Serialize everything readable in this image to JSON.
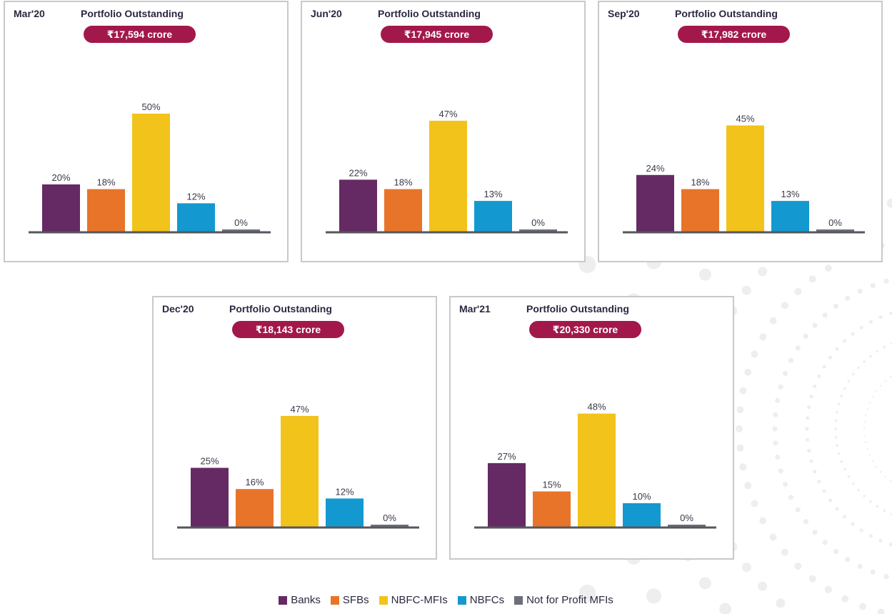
{
  "colors": {
    "Banks": "#652a63",
    "SFBs": "#e8742a",
    "NBFC-MFIs": "#f2c31b",
    "NBFCs": "#1399cf",
    "Not for Profit MFIs": "#6b6f78",
    "pill": "#a3184b",
    "baseline": "#55575d"
  },
  "legend": [
    {
      "label": "Banks"
    },
    {
      "label": "SFBs"
    },
    {
      "label": "NBFC-MFIs"
    },
    {
      "label": "NBFCs"
    },
    {
      "label": "Not for Profit MFIs"
    }
  ],
  "chart_data": [
    {
      "type": "bar",
      "period": "Mar'20",
      "title": "Portfolio Outstanding",
      "badge": "₹17,594 crore",
      "categories": [
        "Banks",
        "SFBs",
        "NBFC-MFIs",
        "NBFCs",
        "Not for Profit MFIs"
      ],
      "values": [
        20,
        18,
        50,
        12,
        0
      ],
      "labels": [
        "20%",
        "18%",
        "50%",
        "12%",
        "0%"
      ]
    },
    {
      "type": "bar",
      "period": "Jun'20",
      "title": "Portfolio Outstanding",
      "badge": "₹17,945 crore",
      "categories": [
        "Banks",
        "SFBs",
        "NBFC-MFIs",
        "NBFCs",
        "Not for Profit MFIs"
      ],
      "values": [
        22,
        18,
        47,
        13,
        0
      ],
      "labels": [
        "22%",
        "18%",
        "47%",
        "13%",
        "0%"
      ]
    },
    {
      "type": "bar",
      "period": "Sep'20",
      "title": "Portfolio Outstanding",
      "badge": "₹17,982 crore",
      "categories": [
        "Banks",
        "SFBs",
        "NBFC-MFIs",
        "NBFCs",
        "Not for Profit MFIs"
      ],
      "values": [
        24,
        18,
        45,
        13,
        0
      ],
      "labels": [
        "24%",
        "18%",
        "45%",
        "13%",
        "0%"
      ]
    },
    {
      "type": "bar",
      "period": "Dec'20",
      "title": "Portfolio Outstanding",
      "badge": "₹18,143 crore",
      "categories": [
        "Banks",
        "SFBs",
        "NBFC-MFIs",
        "NBFCs",
        "Not for Profit MFIs"
      ],
      "values": [
        25,
        16,
        47,
        12,
        0
      ],
      "labels": [
        "25%",
        "16%",
        "47%",
        "12%",
        "0%"
      ]
    },
    {
      "type": "bar",
      "period": "Mar'21",
      "title": "Portfolio Outstanding",
      "badge": "₹20,330 crore",
      "categories": [
        "Banks",
        "SFBs",
        "NBFC-MFIs",
        "NBFCs",
        "Not for Profit MFIs"
      ],
      "values": [
        27,
        15,
        48,
        10,
        0
      ],
      "labels": [
        "27%",
        "15%",
        "48%",
        "10%",
        "0%"
      ]
    }
  ]
}
